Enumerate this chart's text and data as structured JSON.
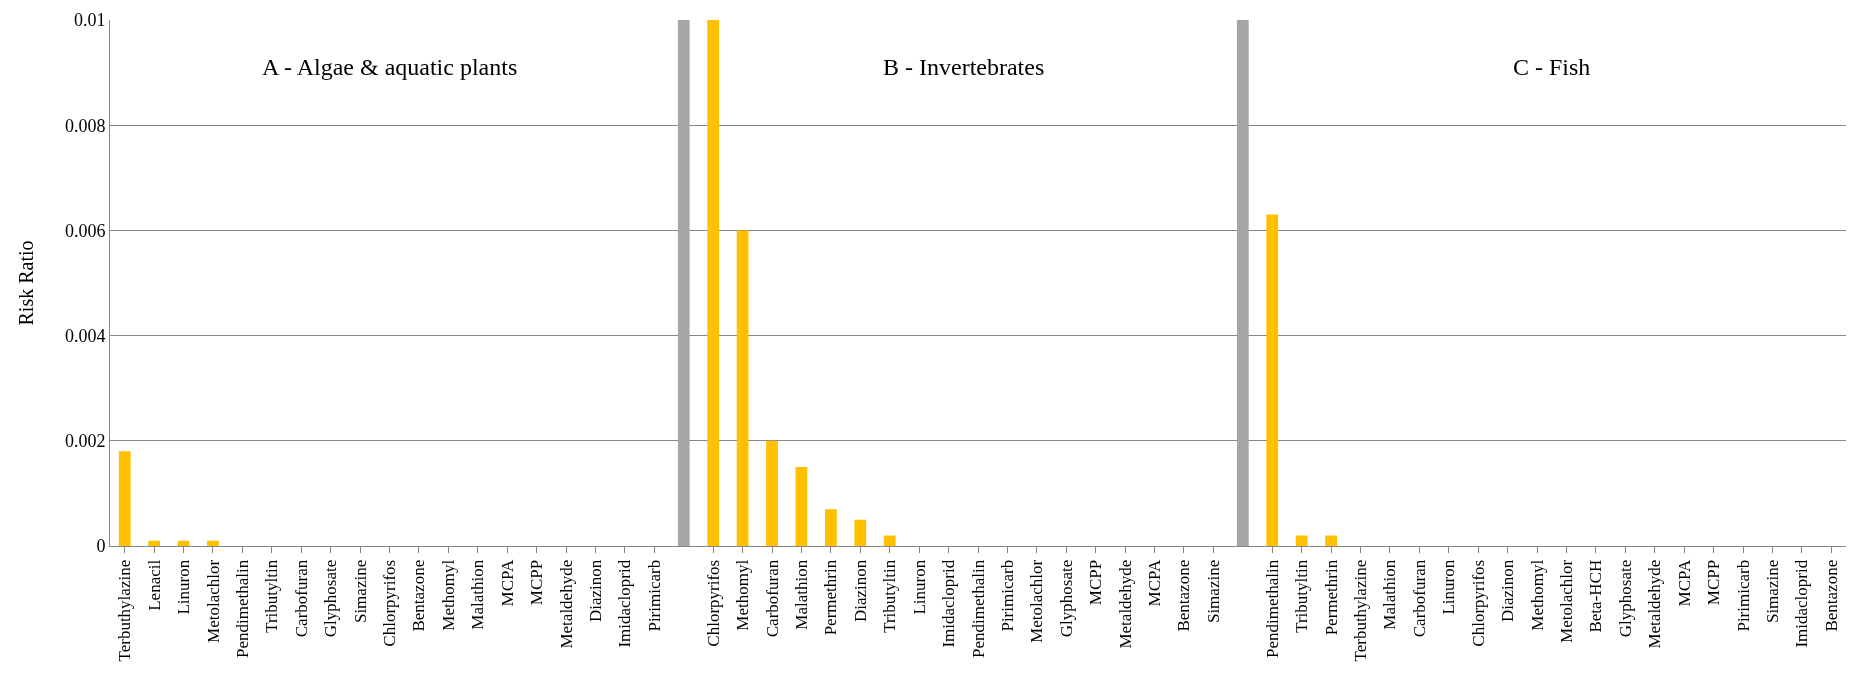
{
  "chart_data": {
    "type": "bar",
    "ylabel": "Risk Ratio",
    "annotations": [
      "A - Algae & aquatic plants",
      "B - Invertebrates",
      "C - Fish"
    ],
    "categories": [
      "Terbuthylazine",
      "Lenacil",
      "Linuron",
      "Metolachlor",
      "Pendimethalin",
      "Tributyltin",
      "Carbofuran",
      "Glyphosate",
      "Simazine",
      "Chlorpyrifos",
      "Bentazone",
      "Methomyl",
      "Malathion",
      "MCPA",
      "MCPP",
      "Metaldehyde",
      "Diazinon",
      "Imidacloprid",
      "Pirimicarb",
      null,
      "Chlorpyrifos",
      "Methomyl",
      "Carbofuran",
      "Malathion",
      "Permethrin",
      "Diazinon",
      "Tributyltin",
      "Linuron",
      "Imidacloprid",
      "Pendimethalin",
      "Pirimicarb",
      "Metolachlor",
      "Glyphosate",
      "MCPP",
      "Metaldehyde",
      "MCPA",
      "Bentazone",
      "Simazine",
      null,
      "Pendimethalin",
      "Tributyltin",
      "Permethrin",
      "Terbuthylazine",
      "Malathion",
      "Carbofuran",
      "Linuron",
      "Chlorpyrifos",
      "Diazinon",
      "Methomyl",
      "Metolachlor",
      "Beta-HCH",
      "Glyphosate",
      "Metaldehyde",
      "MCPA",
      "MCPP",
      "Pirimicarb",
      "Simazine",
      "Imidacloprid",
      "Bentazone"
    ],
    "series": [
      {
        "color": "#ffc000",
        "values": [
          0.0018,
          0.0001,
          0.0001,
          0.0001,
          0,
          0,
          0,
          0,
          0,
          0,
          0,
          0,
          0,
          0,
          0,
          0,
          0,
          0,
          0,
          null,
          0.01,
          0.006,
          0.002,
          0.0015,
          0.0007,
          0.0005,
          0.0002,
          0,
          0,
          0,
          0,
          0,
          0,
          0,
          0,
          0,
          0,
          0,
          null,
          0.0063,
          0.0002,
          0.0002,
          0,
          0,
          0,
          0,
          0,
          0,
          0,
          0,
          0,
          0,
          0,
          0,
          0,
          0,
          0,
          0,
          0
        ]
      },
      {
        "color": "#a6a6a6",
        "values": [
          null,
          null,
          null,
          null,
          null,
          null,
          null,
          null,
          null,
          null,
          null,
          null,
          null,
          null,
          null,
          null,
          null,
          null,
          null,
          0.01,
          null,
          null,
          null,
          null,
          null,
          null,
          null,
          null,
          null,
          null,
          null,
          null,
          null,
          null,
          null,
          null,
          null,
          null,
          0.01,
          null,
          null,
          null,
          null,
          null,
          null,
          null,
          null,
          null,
          null,
          null,
          null,
          null,
          null,
          null,
          null,
          null,
          null,
          null,
          null
        ]
      }
    ],
    "ylim": [
      0,
      0.01
    ],
    "yticks": [
      0,
      0.002,
      0.004,
      0.006,
      0.008,
      0.01
    ],
    "grid": "y"
  }
}
